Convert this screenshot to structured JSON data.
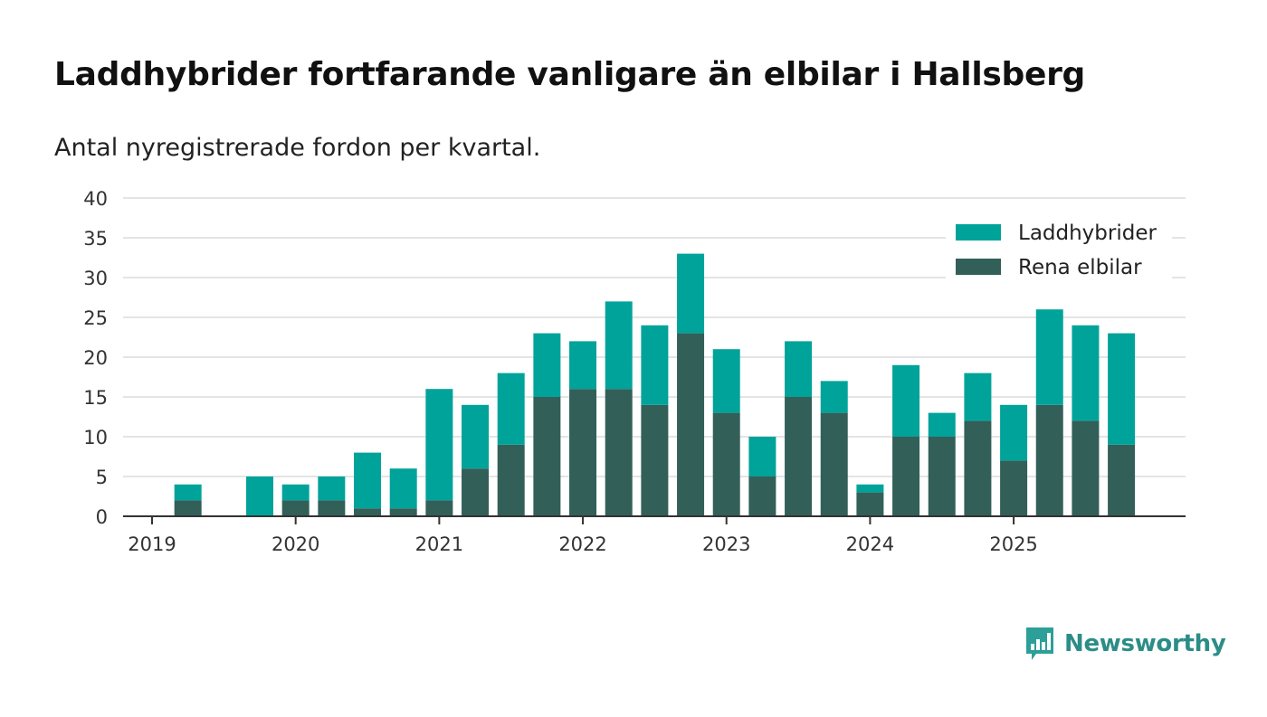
{
  "title": "Laddhybrider fortfarande vanligare än elbilar i Hallsberg",
  "subtitle": "Antal nyregistrerade fordon per kvartal.",
  "brand": {
    "name": "Newsworthy",
    "icon": "bar-chart-logo-icon",
    "color": "#2c9f98"
  },
  "chart_data": {
    "type": "bar",
    "stacked": true,
    "categories": [
      "2019 Q1",
      "2019 Q2",
      "2019 Q3",
      "2019 Q4",
      "2020 Q1",
      "2020 Q2",
      "2020 Q3",
      "2020 Q4",
      "2021 Q1",
      "2021 Q2",
      "2021 Q3",
      "2021 Q4",
      "2022 Q1",
      "2022 Q2",
      "2022 Q3",
      "2022 Q4",
      "2023 Q1",
      "2023 Q2",
      "2023 Q3",
      "2023 Q4",
      "2024 Q1",
      "2024 Q2",
      "2024 Q3",
      "2024 Q4",
      "2025 Q1",
      "2025 Q2",
      "2025 Q3",
      "2025 Q4"
    ],
    "x_ticks": [
      "2019",
      "2020",
      "2021",
      "2022",
      "2023",
      "2024",
      "2025"
    ],
    "series": [
      {
        "name": "Rena elbilar",
        "color": "#335f59",
        "values": [
          0,
          2,
          0,
          0,
          2,
          2,
          1,
          1,
          2,
          6,
          9,
          15,
          16,
          16,
          14,
          23,
          13,
          5,
          15,
          13,
          3,
          10,
          10,
          12,
          7,
          14,
          12,
          9
        ]
      },
      {
        "name": "Laddhybrider",
        "color": "#00a39a",
        "values": [
          0,
          2,
          0,
          5,
          2,
          3,
          7,
          5,
          14,
          8,
          9,
          8,
          6,
          11,
          10,
          10,
          8,
          5,
          7,
          4,
          1,
          9,
          3,
          6,
          7,
          12,
          12,
          14
        ]
      }
    ],
    "legend_order": [
      "Laddhybrider",
      "Rena elbilar"
    ],
    "legend_position": "top-right",
    "yticks": [
      0,
      5,
      10,
      15,
      20,
      25,
      30,
      35,
      40
    ],
    "ylim": [
      0,
      40
    ],
    "xlabel": "",
    "ylabel": "",
    "grid": true
  }
}
